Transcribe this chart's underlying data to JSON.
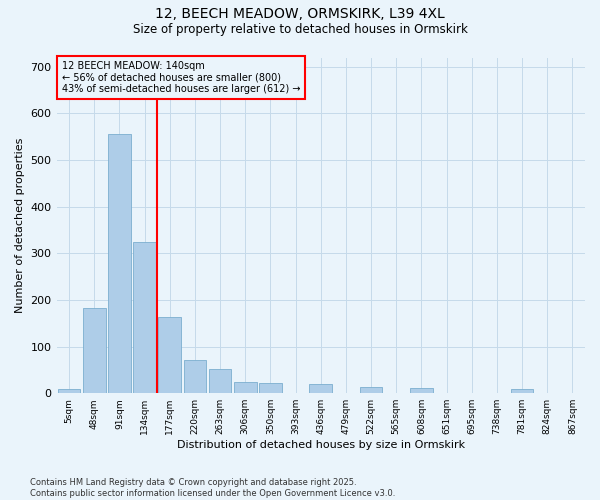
{
  "title_line1": "12, BEECH MEADOW, ORMSKIRK, L39 4XL",
  "title_line2": "Size of property relative to detached houses in Ormskirk",
  "xlabel": "Distribution of detached houses by size in Ormskirk",
  "ylabel": "Number of detached properties",
  "categories": [
    "5sqm",
    "48sqm",
    "91sqm",
    "134sqm",
    "177sqm",
    "220sqm",
    "263sqm",
    "306sqm",
    "350sqm",
    "393sqm",
    "436sqm",
    "479sqm",
    "522sqm",
    "565sqm",
    "608sqm",
    "651sqm",
    "695sqm",
    "738sqm",
    "781sqm",
    "824sqm",
    "867sqm"
  ],
  "values": [
    10,
    183,
    555,
    325,
    163,
    72,
    52,
    23,
    22,
    0,
    20,
    0,
    13,
    0,
    11,
    0,
    0,
    0,
    10,
    0,
    0
  ],
  "bar_color": "#aecde8",
  "bar_edge_color": "#7baecf",
  "annotation_text_line1": "12 BEECH MEADOW: 140sqm",
  "annotation_text_line2": "← 56% of detached houses are smaller (800)",
  "annotation_text_line3": "43% of semi-detached houses are larger (612) →",
  "ylim": [
    0,
    720
  ],
  "yticks": [
    0,
    100,
    200,
    300,
    400,
    500,
    600,
    700
  ],
  "footnote_line1": "Contains HM Land Registry data © Crown copyright and database right 2025.",
  "footnote_line2": "Contains public sector information licensed under the Open Government Licence v3.0.",
  "bg_color": "#eaf4fb",
  "grid_color": "#c5daea"
}
